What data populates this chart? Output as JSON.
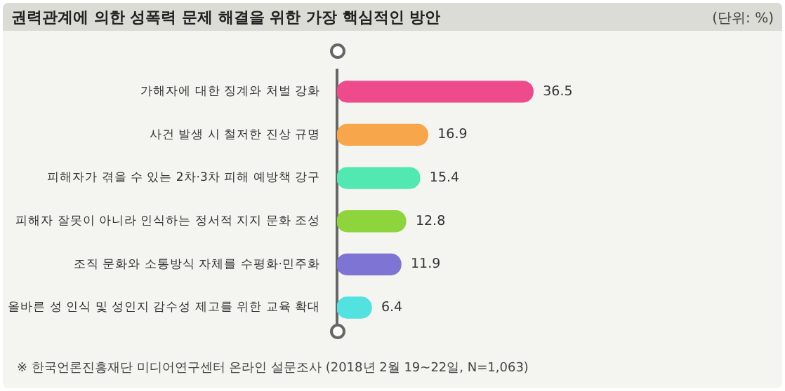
{
  "chart_data": {
    "type": "bar",
    "orientation": "horizontal",
    "title": "권력관계에 의한 성폭력 문제 해결을 위한 가장 핵심적인 방안",
    "categories": [
      "가해자에 대한 징계와 처벌 강화",
      "사건 발생 시 철저한 진상 규명",
      "피해자가 겪을 수 있는 2차·3차 피해 예방책 강구",
      "피해자 잘못이 아니라 인식하는 정서적 지지 문화 조성",
      "조직 문화와 소통방식 자체를 수평화·민주화",
      "올바른 성 인식 및 성인지 감수성 제고를 위한 교육 확대"
    ],
    "values": [
      36.5,
      16.9,
      15.4,
      12.8,
      11.9,
      6.4
    ],
    "colors": [
      "#ee4b8d",
      "#f8a64c",
      "#52e8b2",
      "#8ed43c",
      "#7e74d3",
      "#52e2e0"
    ],
    "tick_labels": "y",
    "data_labels": true,
    "grid": false,
    "legend": false,
    "annotations": [
      "(단위: %)",
      "※ 한국언론진흥재단 미디어연구센터 온라인 설문조사 (2018년 2월 19~22일, N=1,063)"
    ]
  }
}
